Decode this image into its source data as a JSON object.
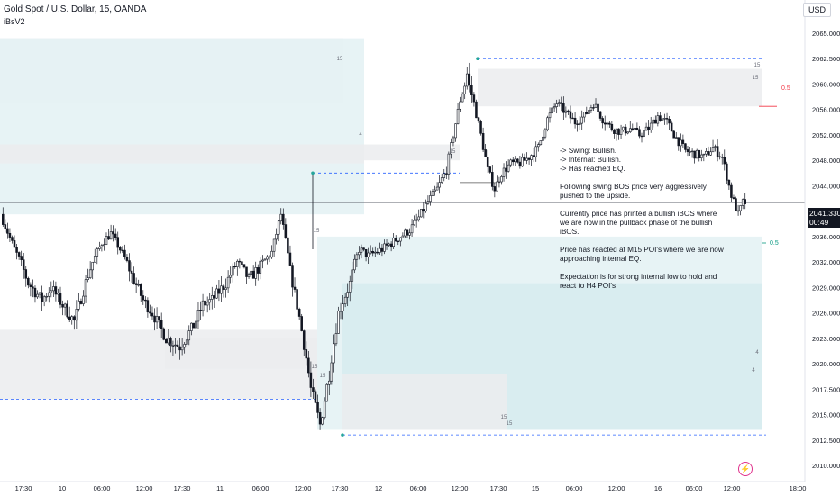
{
  "header": {
    "symbol_line": "Gold Spot / U.S. Dollar, 15, OANDA",
    "indicator": "iBsV2",
    "currency": "USD"
  },
  "price_tag": {
    "price": "2041.330",
    "countdown": "00:49"
  },
  "annotation": {
    "text": "-> Swing: Bullish.\n-> Internal: Bullish.\n-> Has reached EQ.\n\nFollowing swing BOS price very aggressively\npushed to the upside.\n\nCurrently price has printed a bullish iBOS where\nwe are now in the pullback phase of the bullish\niBOS.\n\nPrice has reacted at M15 POI's where we  are now\napproaching internal EQ.\n\nExpectation is for strong internal low to hold and\nreact to H4 POI's"
  },
  "colors": {
    "up": "#131722",
    "down": "#131722",
    "zone_blue": "#e4f2f4",
    "zone_blue_dark": "#d7ecf0",
    "zone_grey": "#ebecee",
    "dash_line": "#2962ff",
    "eq_red": "#f23645",
    "eq_green": "#089981"
  },
  "chart_data": {
    "type": "candlestick",
    "symbol": "Gold Spot / U.S. Dollar",
    "timeframe": "15",
    "source": "OANDA",
    "y_axis_ticks": [
      2065.0,
      2062.5,
      2060.0,
      2056.0,
      2052.0,
      2048.0,
      2044.0,
      2040.0,
      2036.0,
      2032.0,
      2029.0,
      2026.0,
      2023.0,
      2020.0,
      2017.5,
      2015.0,
      2012.5,
      2010.0
    ],
    "x_axis_ticks": [
      "17:30",
      "10",
      "06:00",
      "12:00",
      "17:30",
      "11",
      "06:00",
      "12:00",
      "17:30",
      "12",
      "06:00",
      "12:00",
      "17:30",
      "15",
      "06:00",
      "12:00",
      "16",
      "06:00",
      "12:00",
      "18:00"
    ],
    "ylim": [
      2009.5,
      2066.0
    ],
    "last_price": 2041.33,
    "anchors": [
      [
        0,
        2039.5
      ],
      [
        6,
        2034.0
      ],
      [
        12,
        2029.5
      ],
      [
        18,
        2027.5
      ],
      [
        22,
        2029.0
      ],
      [
        28,
        2026.5
      ],
      [
        32,
        2025.0
      ],
      [
        38,
        2030.5
      ],
      [
        44,
        2035.0
      ],
      [
        48,
        2036.5
      ],
      [
        52,
        2034.0
      ],
      [
        57,
        2030.5
      ],
      [
        62,
        2027.5
      ],
      [
        66,
        2026.0
      ],
      [
        72,
        2023.0
      ],
      [
        78,
        2022.0
      ],
      [
        84,
        2024.5
      ],
      [
        88,
        2027.0
      ],
      [
        92,
        2027.5
      ],
      [
        98,
        2029.5
      ],
      [
        103,
        2032.0
      ],
      [
        108,
        2030.0
      ],
      [
        113,
        2031.5
      ],
      [
        118,
        2033.5
      ],
      [
        122,
        2039.5
      ],
      [
        126,
        2031.0
      ],
      [
        130,
        2025.5
      ],
      [
        135,
        2017.5
      ],
      [
        139,
        2014.0
      ],
      [
        143,
        2019.0
      ],
      [
        147,
        2026.0
      ],
      [
        152,
        2029.5
      ],
      [
        156,
        2034.0
      ],
      [
        160,
        2033.0
      ],
      [
        166,
        2034.0
      ],
      [
        172,
        2035.5
      ],
      [
        178,
        2037.0
      ],
      [
        182,
        2039.0
      ],
      [
        186,
        2041.5
      ],
      [
        190,
        2043.5
      ],
      [
        194,
        2046.5
      ],
      [
        197,
        2052.0
      ],
      [
        200,
        2057.5
      ],
      [
        203,
        2061.0
      ],
      [
        206,
        2057.0
      ],
      [
        209,
        2052.0
      ],
      [
        212,
        2046.5
      ],
      [
        215,
        2043.5
      ],
      [
        218,
        2046.0
      ],
      [
        222,
        2047.5
      ],
      [
        226,
        2047.5
      ],
      [
        230,
        2048.5
      ],
      [
        234,
        2050.0
      ],
      [
        238,
        2054.5
      ],
      [
        242,
        2057.0
      ],
      [
        246,
        2055.5
      ],
      [
        250,
        2054.0
      ],
      [
        254,
        2055.0
      ],
      [
        258,
        2057.0
      ],
      [
        262,
        2054.5
      ],
      [
        266,
        2053.0
      ],
      [
        270,
        2052.5
      ],
      [
        274,
        2053.0
      ],
      [
        278,
        2052.0
      ],
      [
        282,
        2053.0
      ],
      [
        286,
        2055.0
      ],
      [
        290,
        2054.0
      ],
      [
        294,
        2051.5
      ],
      [
        298,
        2049.5
      ],
      [
        302,
        2049.0
      ],
      [
        306,
        2048.5
      ],
      [
        310,
        2050.0
      ],
      [
        314,
        2048.5
      ],
      [
        318,
        2042.5
      ],
      [
        321,
        2039.5
      ],
      [
        323,
        2041.33
      ]
    ],
    "n_candles": 324,
    "levels": [
      {
        "name": "swing-high",
        "price": 2062.5,
        "style": "dashed"
      },
      {
        "name": "ibos-level",
        "price": 2046.0,
        "style": "dashed"
      },
      {
        "name": "swing-low",
        "price": 2013.0,
        "style": "dashed"
      },
      {
        "name": "left-low",
        "price": 2016.5,
        "style": "dashed"
      },
      {
        "name": "ibos-solid",
        "price": 2044.5,
        "style": "solid"
      }
    ],
    "eq_labels": [
      {
        "text": "0.5",
        "price": 2056.5,
        "color": "red"
      },
      {
        "text": "0.5",
        "price": 2037.5,
        "color": "green"
      }
    ],
    "zones": [
      {
        "name": "h4-supply-top",
        "x0": 0,
        "x1": 381,
        "y0": 2064.5,
        "y1": 2057.0,
        "color": "grey",
        "label": "15",
        "label_pos": "right"
      },
      {
        "name": "h4-demand-left",
        "x0": 0,
        "x1": 404,
        "y0": 2064.5,
        "y1": 2039.5,
        "color": "blue"
      },
      {
        "name": "m15-zone-mid-left",
        "x0": 0,
        "x1": 404,
        "y0": 2050.5,
        "y1": 2047.5,
        "color": "grey",
        "label": "4",
        "label_pos": "right-top"
      },
      {
        "name": "m15-zone-15a",
        "x0": 0,
        "x1": 510,
        "y0": 2050.5,
        "y1": 2048.0,
        "color": "grey",
        "label": "15",
        "label_pos": "right"
      },
      {
        "name": "supply-right",
        "x0": 530,
        "x1": 845,
        "y0": 2061.5,
        "y1": 2056.5,
        "color": "grey",
        "label": "15",
        "label_pos": "right"
      },
      {
        "name": "demand-large",
        "x0": 352,
        "x1": 845,
        "y0": 2036.0,
        "y1": 2013.5,
        "color": "blue",
        "label": "4",
        "label_pos": "right"
      },
      {
        "name": "demand-inner",
        "x0": 380,
        "x1": 845,
        "y0": 2029.5,
        "y1": 2013.5,
        "color": "blue-dark",
        "label": "4",
        "label_pos": "right"
      },
      {
        "name": "low-zone-left",
        "x0": 0,
        "x1": 352,
        "y0": 2024.0,
        "y1": 2016.5,
        "color": "grey"
      },
      {
        "name": "low-zone-15",
        "x0": 183,
        "x1": 352,
        "y0": 2023.0,
        "y1": 2019.5,
        "color": "grey",
        "label": "15",
        "label_pos": "right"
      },
      {
        "name": "bottom-zone",
        "x0": 380,
        "x1": 562,
        "y0": 2019.0,
        "y1": 2013.5,
        "color": "grey",
        "label": "15",
        "label_pos": "right"
      }
    ]
  }
}
